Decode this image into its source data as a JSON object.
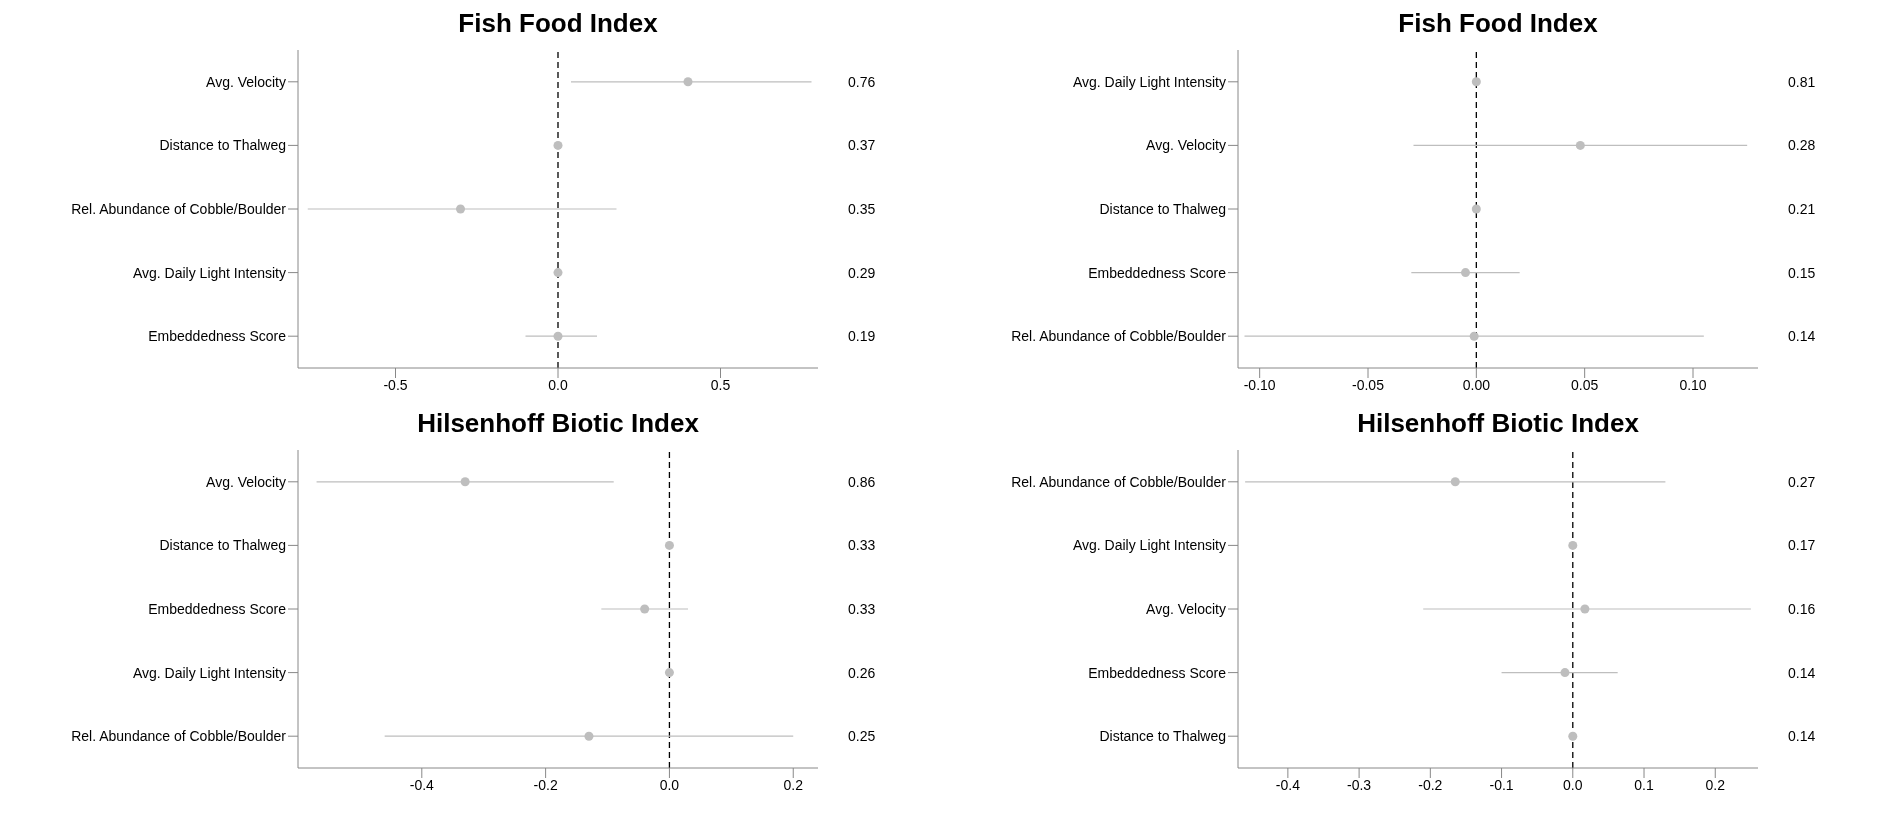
{
  "chart_data": [
    {
      "type": "scatter",
      "title": "Fish Food Index",
      "orientation": "horizontal",
      "marker": "circle",
      "color": "#bebebe",
      "categories": [
        "Avg. Velocity",
        "Distance to Thalweg",
        "Rel. Abundance of Cobble/Boulder",
        "Avg. Daily Light Intensity",
        "Embeddedness Score"
      ],
      "values": [
        0.4,
        0.0,
        -0.3,
        0.0,
        0.0
      ],
      "errors": [
        [
          0.04,
          0.78
        ],
        null,
        [
          -0.77,
          0.18
        ],
        null,
        [
          -0.1,
          0.12
        ]
      ],
      "xlim": [
        -0.8,
        0.8
      ],
      "xticks": [
        {
          "value": -0.5,
          "label": "-0.5"
        },
        {
          "value": 0,
          "label": "0.0"
        },
        {
          "value": 0.5,
          "label": "0.5"
        }
      ],
      "ref_lines": [
        {
          "axis": "x",
          "value": 0,
          "line_style": "dashed",
          "color": "#000000"
        }
      ],
      "annotations": [
        "0.76",
        "0.37",
        "0.35",
        "0.29",
        "0.19"
      ]
    },
    {
      "type": "scatter",
      "title": "Fish Food Index",
      "orientation": "horizontal",
      "marker": "circle",
      "color": "#bebebe",
      "categories": [
        "Avg. Daily Light Intensity",
        "Avg. Velocity",
        "Distance to Thalweg",
        "Embeddedness Score",
        "Rel. Abundance of Cobble/Boulder"
      ],
      "values": [
        0.0,
        0.048,
        0.0,
        -0.005,
        -0.001
      ],
      "errors": [
        null,
        [
          -0.029,
          0.125
        ],
        null,
        [
          -0.03,
          0.02
        ],
        [
          -0.107,
          0.105
        ]
      ],
      "xlim": [
        -0.11,
        0.13
      ],
      "xticks": [
        {
          "value": -0.1,
          "label": "-0.10"
        },
        {
          "value": -0.05,
          "label": "-0.05"
        },
        {
          "value": 0,
          "label": "0.00"
        },
        {
          "value": 0.05,
          "label": "0.05"
        },
        {
          "value": 0.1,
          "label": "0.10"
        }
      ],
      "ref_lines": [
        {
          "axis": "x",
          "value": 0,
          "line_style": "dashed",
          "color": "#000000"
        }
      ],
      "annotations": [
        "0.81",
        "0.28",
        "0.21",
        "0.15",
        "0.14"
      ]
    },
    {
      "type": "scatter",
      "title": "Hilsenhoff Biotic Index",
      "orientation": "horizontal",
      "marker": "circle",
      "color": "#bebebe",
      "categories": [
        "Avg. Velocity",
        "Distance to Thalweg",
        "Embeddedness Score",
        "Avg. Daily Light Intensity",
        "Rel. Abundance of Cobble/Boulder"
      ],
      "values": [
        -0.33,
        0.0,
        -0.04,
        0.0,
        -0.13
      ],
      "errors": [
        [
          -0.57,
          -0.09
        ],
        null,
        [
          -0.11,
          0.03
        ],
        null,
        [
          -0.46,
          0.2
        ]
      ],
      "xlim": [
        -0.6,
        0.24
      ],
      "xticks": [
        {
          "value": -0.4,
          "label": "-0.4"
        },
        {
          "value": -0.2,
          "label": "-0.2"
        },
        {
          "value": 0,
          "label": "0.0"
        },
        {
          "value": 0.2,
          "label": "0.2"
        }
      ],
      "ref_lines": [
        {
          "axis": "x",
          "value": 0,
          "line_style": "dashed",
          "color": "#000000"
        }
      ],
      "annotations": [
        "0.86",
        "0.33",
        "0.33",
        "0.26",
        "0.25"
      ]
    },
    {
      "type": "scatter",
      "title": "Hilsenhoff Biotic Index",
      "orientation": "horizontal",
      "marker": "circle",
      "color": "#bebebe",
      "categories": [
        "Rel. Abundance of Cobble/Boulder",
        "Avg. Daily Light Intensity",
        "Avg. Velocity",
        "Embeddedness Score",
        "Distance to Thalweg"
      ],
      "values": [
        -0.165,
        0.0,
        0.017,
        -0.011,
        0.0
      ],
      "errors": [
        [
          -0.46,
          0.13
        ],
        null,
        [
          -0.21,
          0.25
        ],
        [
          -0.1,
          0.063
        ],
        null
      ],
      "xlim": [
        -0.47,
        0.26
      ],
      "xticks": [
        {
          "value": -0.4,
          "label": "-0.4"
        },
        {
          "value": -0.3,
          "label": "-0.3"
        },
        {
          "value": -0.2,
          "label": "-0.2"
        },
        {
          "value": -0.1,
          "label": "-0.1"
        },
        {
          "value": 0,
          "label": "0.0"
        },
        {
          "value": 0.1,
          "label": "0.1"
        },
        {
          "value": 0.2,
          "label": "0.2"
        }
      ],
      "ref_lines": [
        {
          "axis": "x",
          "value": 0,
          "line_style": "dashed",
          "color": "#000000"
        }
      ],
      "annotations": [
        "0.27",
        "0.17",
        "0.16",
        "0.14",
        "0.14"
      ]
    }
  ]
}
